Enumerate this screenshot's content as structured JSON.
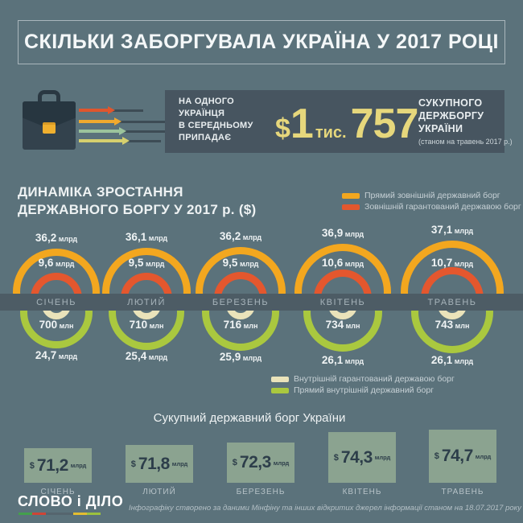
{
  "colors": {
    "background": "#5b727b",
    "panel": "#475560",
    "band": "#4d5c65",
    "external_direct": "#f3a71f",
    "external_guaranteed": "#e4572e",
    "internal_direct": "#aac83f",
    "internal_guaranteed": "#eae3ba",
    "accent_gold": "#e6d77c",
    "total_box": "#8ba390",
    "total_box_text": "#2d3e4a",
    "briefcase": "#2a3842",
    "arrow_colors": [
      "#e0562d",
      "#f0a92e",
      "#9cc49c",
      "#d6d06e"
    ],
    "logo_underline": [
      "#44a04c",
      "#cf4436",
      "#55656e",
      "#55656e",
      "#e3bd30",
      "#9cc23d"
    ]
  },
  "header": {
    "title": "СКІЛЬКИ ЗАБОРГУВАЛА УКРАЇНА У 2017 РОЦІ"
  },
  "per_capita": {
    "label_left_lines": [
      "НА ОДНОГО",
      "УКРАЇНЦЯ",
      "В СЕРЕДНЬОМУ",
      "ПРИПАДАЄ"
    ],
    "currency": "$",
    "thousands": "1",
    "thousands_label": "тис.",
    "units": "757",
    "label_right_lines": [
      "СУКУПНОГО",
      "ДЕРЖБОРГУ",
      "УКРАЇНИ"
    ],
    "note": "(станом на травень 2017 р.)"
  },
  "dynamics": {
    "title_lines": [
      "ДИНАМІКА ЗРОСТАННЯ",
      "ДЕРЖАВНОГО БОРГУ У 2017 р. ($)"
    ],
    "legend_top": [
      {
        "label": "Прямий зовнішній державний борг",
        "color": "#f3a71f"
      },
      {
        "label": "Зовнішній гарантований державою борг",
        "color": "#e4572e"
      }
    ],
    "legend_bottom": [
      {
        "label": "Внутрішній гарантований державою борг",
        "color": "#eae3ba"
      },
      {
        "label": "Прямий внутрішній державний борг",
        "color": "#aac83f"
      }
    ],
    "months": [
      {
        "name": "СІЧЕНЬ",
        "external_direct": {
          "value": "36,2",
          "unit": "млрд"
        },
        "external_guaranteed": {
          "value": "9,6",
          "unit": "млрд"
        },
        "internal_guaranteed": {
          "value": "700",
          "unit": "млн"
        },
        "internal_direct": {
          "value": "24,7",
          "unit": "млрд"
        }
      },
      {
        "name": "ЛЮТИЙ",
        "external_direct": {
          "value": "36,1",
          "unit": "млрд"
        },
        "external_guaranteed": {
          "value": "9,5",
          "unit": "млрд"
        },
        "internal_guaranteed": {
          "value": "710",
          "unit": "млн"
        },
        "internal_direct": {
          "value": "25,4",
          "unit": "млрд"
        }
      },
      {
        "name": "БЕРЕЗЕНЬ",
        "external_direct": {
          "value": "36,2",
          "unit": "млрд"
        },
        "external_guaranteed": {
          "value": "9,5",
          "unit": "млрд"
        },
        "internal_guaranteed": {
          "value": "716",
          "unit": "млн"
        },
        "internal_direct": {
          "value": "25,9",
          "unit": "млрд"
        }
      },
      {
        "name": "КВІТЕНЬ",
        "external_direct": {
          "value": "36,9",
          "unit": "млрд"
        },
        "external_guaranteed": {
          "value": "10,6",
          "unit": "млрд"
        },
        "internal_guaranteed": {
          "value": "734",
          "unit": "млн"
        },
        "internal_direct": {
          "value": "26,1",
          "unit": "млрд"
        }
      },
      {
        "name": "ТРАВЕНЬ",
        "external_direct": {
          "value": "37,1",
          "unit": "млрд"
        },
        "external_guaranteed": {
          "value": "10,7",
          "unit": "млрд"
        },
        "internal_guaranteed": {
          "value": "743",
          "unit": "млн"
        },
        "internal_direct": {
          "value": "26,1",
          "unit": "млрд"
        }
      }
    ]
  },
  "total": {
    "title": "Сукупний державний борг України",
    "items": [
      {
        "currency": "$",
        "value": "71,2",
        "unit": "млрд",
        "month": "СІЧЕНЬ"
      },
      {
        "currency": "$",
        "value": "71,8",
        "unit": "млрд",
        "month": "ЛЮТИЙ"
      },
      {
        "currency": "$",
        "value": "72,3",
        "unit": "млрд",
        "month": "БЕРЕЗЕНЬ"
      },
      {
        "currency": "$",
        "value": "74,3",
        "unit": "млрд",
        "month": "КВІТЕНЬ"
      },
      {
        "currency": "$",
        "value": "74,7",
        "unit": "млрд",
        "month": "ТРАВЕНЬ"
      }
    ]
  },
  "footer": {
    "logo": "СЛОВО і ДІЛО",
    "note": "Інфографіку створено за даними Мінфіну та інших відкритих джерел інформації станом на 18.07.2017 року"
  },
  "chart_data": [
    {
      "type": "ring-comparison",
      "title": "ДИНАМІКА ЗРОСТАННЯ ДЕРЖАВНОГО БОРГУ У 2017 р. ($)",
      "categories": [
        "СІЧЕНЬ",
        "ЛЮТИЙ",
        "БЕРЕЗЕНЬ",
        "КВІТЕНЬ",
        "ТРАВЕНЬ"
      ],
      "series": [
        {
          "name": "Прямий зовнішній державний борг",
          "unit": "млрд $",
          "color": "#f3a71f",
          "values": [
            36.2,
            36.1,
            36.2,
            36.9,
            37.1
          ]
        },
        {
          "name": "Зовнішній гарантований державою борг",
          "unit": "млрд $",
          "color": "#e4572e",
          "values": [
            9.6,
            9.5,
            9.5,
            10.6,
            10.7
          ]
        },
        {
          "name": "Внутрішній гарантований державою борг",
          "unit": "млн $",
          "color": "#eae3ba",
          "values": [
            700,
            710,
            716,
            734,
            743
          ]
        },
        {
          "name": "Прямий внутрішній державний борг",
          "unit": "млрд $",
          "color": "#aac83f",
          "values": [
            24.7,
            25.4,
            25.9,
            26.1,
            26.1
          ]
        }
      ],
      "legend_position": "top-right and bottom-right"
    },
    {
      "type": "bar",
      "title": "Сукупний державний борг України",
      "categories": [
        "СІЧЕНЬ",
        "ЛЮТИЙ",
        "БЕРЕЗЕНЬ",
        "КВІТЕНЬ",
        "ТРАВЕНЬ"
      ],
      "values": [
        71.2,
        71.8,
        72.3,
        74.3,
        74.7
      ],
      "unit": "$ млрд",
      "ylim": [
        71,
        75
      ]
    }
  ]
}
